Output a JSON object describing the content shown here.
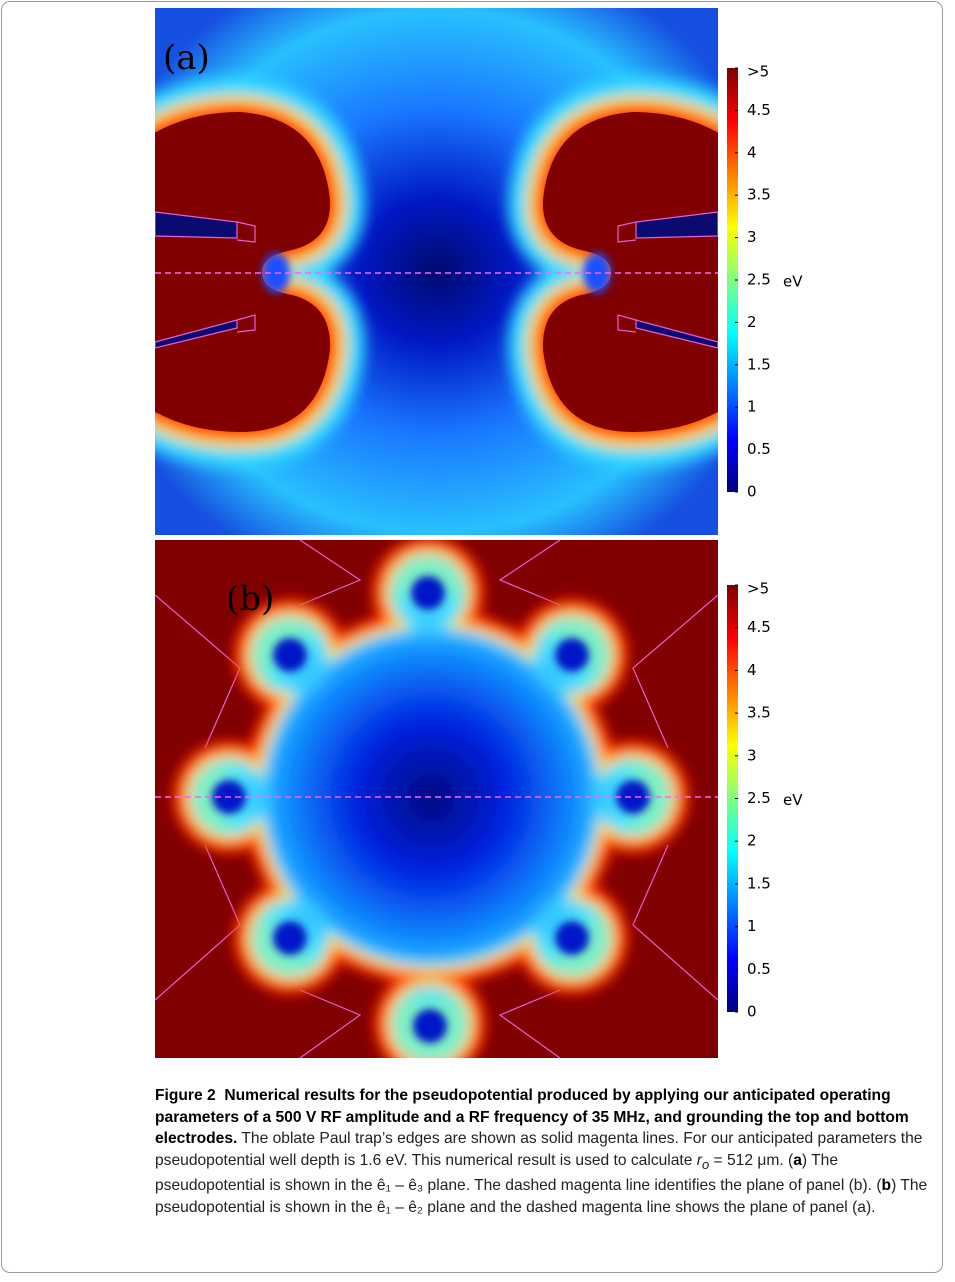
{
  "figure": {
    "panels": [
      {
        "label": "(a)",
        "colorbar": {
          "lim": [
            0,
            5
          ],
          "unit": "eV",
          "ticks": [
            0,
            0.5,
            1,
            1.5,
            2,
            2.5,
            3,
            3.5,
            4,
            4.5,
            {
              "value": 5,
              "label": ">5"
            }
          ]
        }
      },
      {
        "label": "(b)",
        "colorbar": {
          "lim": [
            0,
            5
          ],
          "unit": "eV",
          "ticks": [
            0,
            0.5,
            1,
            1.5,
            2,
            2.5,
            3,
            3.5,
            4,
            4.5,
            {
              "value": 5,
              "label": ">5"
            }
          ]
        }
      }
    ],
    "caption": {
      "label": "Figure 2",
      "title": "Numerical results for the pseudopotential produced by applying our anticipated operating parameters of a 500 V RF amplitude and a RF frequency of 35 MHz, and grounding the top and bottom electrodes.",
      "body": [
        " The oblate Paul trap’s edges are shown as solid magenta lines. For our anticipated parameters the pseudopotential well depth is 1.6 eV. This numerical result is used to calculate ",
        "r",
        "o",
        " = 512 μm. (",
        "a",
        ") The pseudopotential is shown in the ê₁ – ê₃ plane. The dashed magenta line identifies the plane of panel (b). (",
        "b",
        ") The pseudopotential is shown in the ê₁ – ê₂ plane and the dashed magenta line shows the plane of panel (a)."
      ]
    }
  }
}
